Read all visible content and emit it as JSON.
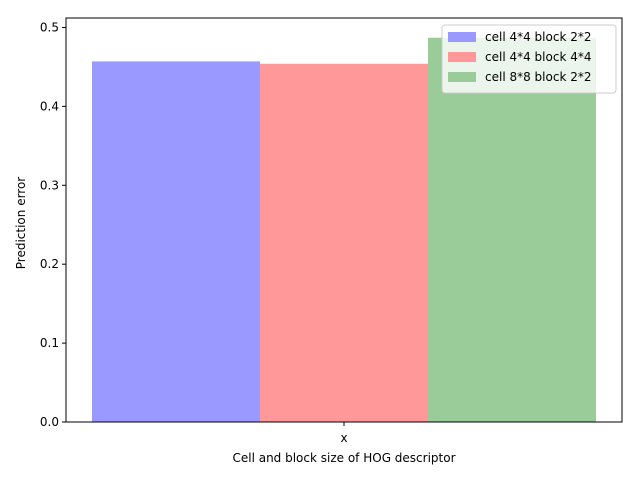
{
  "chart_data": {
    "type": "bar",
    "title": "",
    "xlabel": "Cell and block size of HOG descriptor",
    "ylabel": "Prediction error",
    "categories": [
      "x"
    ],
    "ylim": [
      0,
      0.512
    ],
    "yticks": [
      0.0,
      0.1,
      0.2,
      0.3,
      0.4,
      0.5
    ],
    "ytick_labels": [
      "0.0",
      "0.1",
      "0.2",
      "0.3",
      "0.4",
      "0.5"
    ],
    "grid": false,
    "legend_position": "top-right",
    "series": [
      {
        "name": "cell 4*4 block 2*2",
        "values": [
          0.457
        ],
        "color": "#9999ff"
      },
      {
        "name": "cell 4*4 block 4*4",
        "values": [
          0.454
        ],
        "color": "#ff9999"
      },
      {
        "name": "cell 8*8 block 2*2",
        "values": [
          0.487
        ],
        "color": "#99cc99"
      }
    ]
  }
}
